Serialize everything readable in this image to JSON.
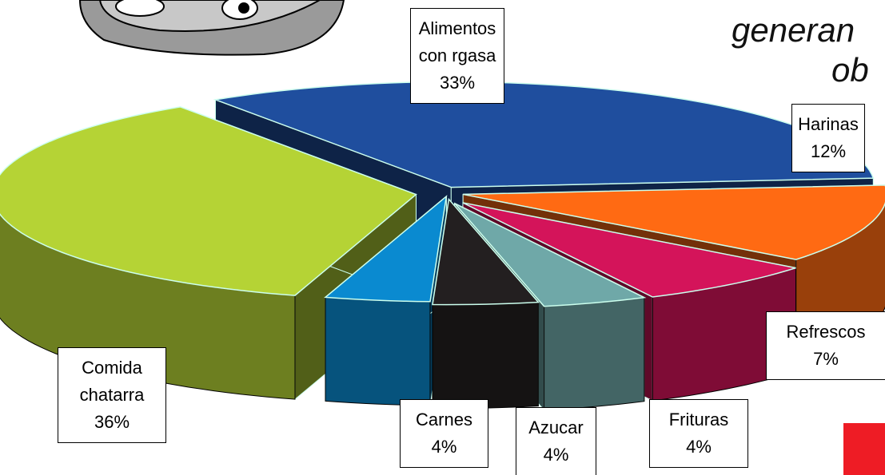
{
  "chart_data": {
    "type": "pie3d",
    "title_lines": [
      "generan",
      "ob"
    ],
    "categories": [
      "Harinas",
      "Refrescos",
      "Frituras",
      "Azucar",
      "Carnes",
      "Comida chatarra",
      "Alimentos con rgasa"
    ],
    "values": [
      12,
      7,
      4,
      4,
      4,
      36,
      33
    ],
    "value_labels": [
      "12%",
      "7%",
      "4%",
      "4%",
      "4%",
      "36%",
      "33%"
    ],
    "colors": [
      "#ff6a13",
      "#d4145a",
      "#6fa8a8",
      "#231f20",
      "#0a8ad0",
      "#b5d335",
      "#1f4e9e"
    ]
  }
}
